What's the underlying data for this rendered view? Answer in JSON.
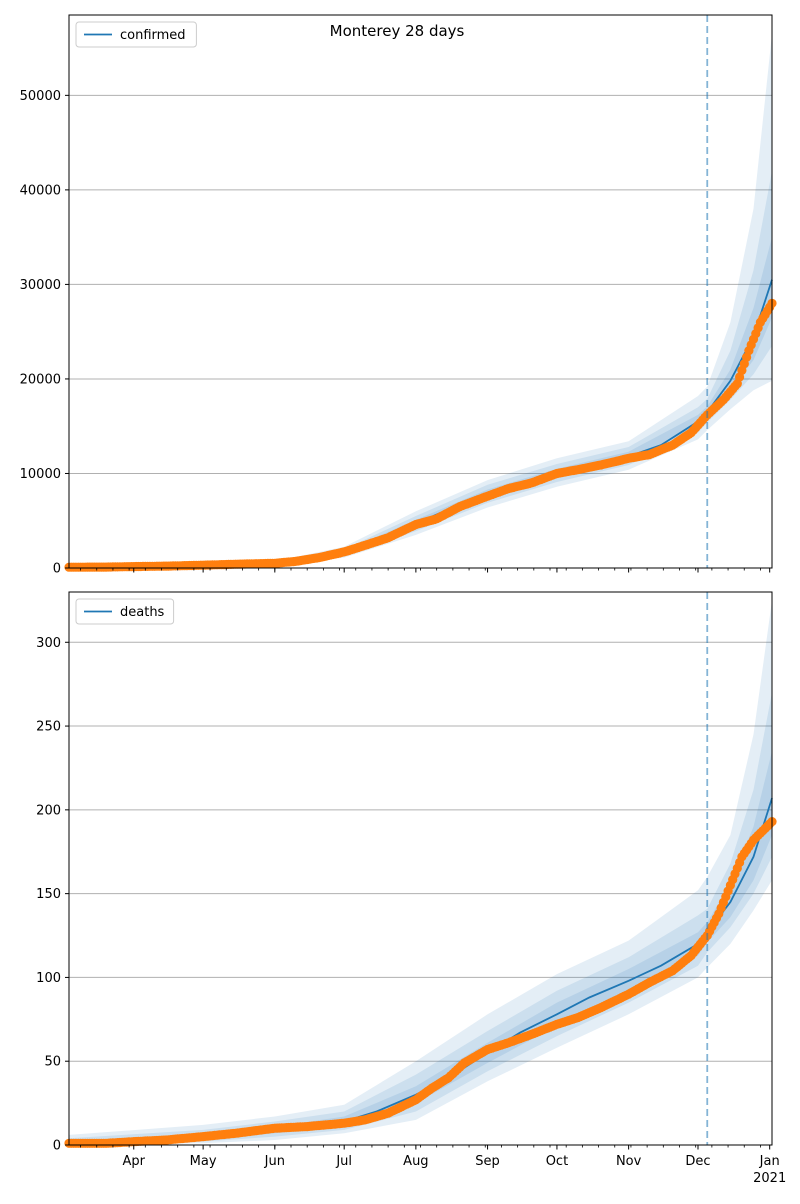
{
  "figure": {
    "title": "Monterey 28 days"
  },
  "colors": {
    "model": "#1f77b4",
    "observed": "#ff7f0e",
    "band": "#1f77b4",
    "grid": "#b0b0b0",
    "vline": "#1f77b4"
  },
  "xaxis": {
    "month_labels": [
      "Apr",
      "May",
      "Jun",
      "Jul",
      "Aug",
      "Sep",
      "Oct",
      "Nov",
      "Dec",
      "Jan"
    ],
    "year_label": "2021"
  },
  "chart_data": [
    {
      "type": "line",
      "title": "Monterey 28 days",
      "legend": {
        "entry": "confirmed",
        "placement": "top-left"
      },
      "xlim": [
        "2020-03-04",
        "2021-01-02"
      ],
      "ylim": [
        0,
        58500
      ],
      "yticks": [
        0,
        10000,
        20000,
        30000,
        40000,
        50000
      ],
      "grid": "horizontal",
      "forecast_start": "2020-12-05",
      "series": [
        {
          "name": "confirmed",
          "kind": "model",
          "x": [
            "2020-03-04",
            "2020-04-01",
            "2020-05-01",
            "2020-06-01",
            "2020-06-15",
            "2020-07-01",
            "2020-07-15",
            "2020-08-01",
            "2020-08-15",
            "2020-09-01",
            "2020-09-15",
            "2020-10-01",
            "2020-10-15",
            "2020-11-01",
            "2020-11-15",
            "2020-12-01",
            "2020-12-05",
            "2020-12-15",
            "2020-12-25",
            "2021-01-02"
          ],
          "values": [
            50,
            100,
            250,
            500,
            900,
            1600,
            2900,
            4700,
            6200,
            7800,
            9000,
            10000,
            10800,
            11800,
            13000,
            15500,
            16500,
            19800,
            24500,
            30500
          ]
        },
        {
          "name": "band 50%",
          "kind": "band",
          "x": [
            "2020-03-04",
            "2020-05-01",
            "2020-06-01",
            "2020-07-01",
            "2020-08-01",
            "2020-09-01",
            "2020-10-01",
            "2020-11-01",
            "2020-12-01",
            "2020-12-05",
            "2020-12-15",
            "2020-12-25",
            "2021-01-02"
          ],
          "lower": [
            40,
            200,
            420,
            1400,
            4300,
            7300,
            9500,
            11300,
            15000,
            16000,
            18800,
            22000,
            26500
          ],
          "upper": [
            60,
            300,
            580,
            1800,
            5100,
            8300,
            10500,
            12300,
            16200,
            17100,
            21000,
            27500,
            35000
          ]
        },
        {
          "name": "band 80%",
          "kind": "band",
          "x": [
            "2020-03-04",
            "2020-05-01",
            "2020-06-01",
            "2020-07-01",
            "2020-08-01",
            "2020-09-01",
            "2020-10-01",
            "2020-11-01",
            "2020-12-01",
            "2020-12-05",
            "2020-12-15",
            "2020-12-25",
            "2021-01-02"
          ],
          "lower": [
            30,
            170,
            360,
            1250,
            3900,
            6900,
            9100,
            10900,
            14300,
            15400,
            17800,
            20500,
            23500
          ],
          "upper": [
            70,
            340,
            650,
            2000,
            5500,
            8800,
            11000,
            12800,
            17000,
            17900,
            23000,
            31500,
            42000
          ]
        },
        {
          "name": "band 95%",
          "kind": "band",
          "x": [
            "2020-03-04",
            "2020-05-01",
            "2020-06-01",
            "2020-07-01",
            "2020-08-01",
            "2020-09-01",
            "2020-10-01",
            "2020-11-01",
            "2020-12-01",
            "2020-12-05",
            "2020-12-15",
            "2020-12-25",
            "2021-01-02"
          ],
          "lower": [
            20,
            130,
            300,
            1100,
            3500,
            6400,
            8600,
            10400,
            13600,
            14600,
            16800,
            18800,
            19800
          ],
          "upper": [
            80,
            380,
            720,
            2250,
            6000,
            9300,
            11600,
            13400,
            18200,
            19200,
            26000,
            38000,
            56500
          ]
        },
        {
          "name": "observed",
          "kind": "points",
          "x": [
            "2020-03-04",
            "2020-03-20",
            "2020-04-01",
            "2020-04-15",
            "2020-05-01",
            "2020-05-15",
            "2020-06-01",
            "2020-06-10",
            "2020-06-20",
            "2020-07-01",
            "2020-07-10",
            "2020-07-20",
            "2020-08-01",
            "2020-08-10",
            "2020-08-20",
            "2020-09-01",
            "2020-09-10",
            "2020-09-20",
            "2020-10-01",
            "2020-10-10",
            "2020-10-20",
            "2020-11-01",
            "2020-11-10",
            "2020-11-20",
            "2020-11-28",
            "2020-12-05",
            "2020-12-12",
            "2020-12-18",
            "2020-12-23",
            "2020-12-28",
            "2021-01-02"
          ],
          "values": [
            80,
            100,
            150,
            200,
            300,
            400,
            500,
            700,
            1100,
            1700,
            2400,
            3200,
            4600,
            5200,
            6500,
            7600,
            8400,
            9000,
            10000,
            10400,
            10900,
            11600,
            12000,
            13000,
            14300,
            16200,
            17800,
            19500,
            23000,
            26000,
            28000
          ]
        }
      ]
    },
    {
      "type": "line",
      "legend": {
        "entry": "deaths",
        "placement": "top-left"
      },
      "xlim": [
        "2020-03-04",
        "2021-01-02"
      ],
      "ylim": [
        0,
        330
      ],
      "yticks": [
        0,
        50,
        100,
        150,
        200,
        250,
        300
      ],
      "grid": "horizontal",
      "forecast_start": "2020-12-05",
      "series": [
        {
          "name": "deaths",
          "kind": "model",
          "x": [
            "2020-03-04",
            "2020-04-01",
            "2020-05-01",
            "2020-06-01",
            "2020-07-01",
            "2020-07-15",
            "2020-08-01",
            "2020-08-15",
            "2020-09-01",
            "2020-09-15",
            "2020-10-01",
            "2020-10-15",
            "2020-11-01",
            "2020-11-15",
            "2020-12-01",
            "2020-12-05",
            "2020-12-15",
            "2020-12-25",
            "2021-01-02"
          ],
          "values": [
            0,
            2,
            5,
            9,
            14,
            20,
            30,
            40,
            55,
            67,
            78,
            88,
            98,
            107,
            120,
            127,
            145,
            172,
            207
          ]
        },
        {
          "name": "band 50%",
          "kind": "band",
          "x": [
            "2020-03-04",
            "2020-05-01",
            "2020-06-01",
            "2020-07-01",
            "2020-08-01",
            "2020-09-01",
            "2020-10-01",
            "2020-11-01",
            "2020-12-01",
            "2020-12-05",
            "2020-12-15",
            "2020-12-25",
            "2021-01-02"
          ],
          "lower": [
            0,
            3,
            7,
            11,
            25,
            49,
            71,
            91,
            113,
            121,
            136,
            158,
            185
          ],
          "upper": [
            2,
            7,
            11,
            17,
            35,
            61,
            85,
            105,
            127,
            133,
            156,
            190,
            235
          ]
        },
        {
          "name": "band 80%",
          "kind": "band",
          "x": [
            "2020-03-04",
            "2020-05-01",
            "2020-06-01",
            "2020-07-01",
            "2020-08-01",
            "2020-09-01",
            "2020-10-01",
            "2020-11-01",
            "2020-12-01",
            "2020-12-05",
            "2020-12-15",
            "2020-12-25",
            "2021-01-02"
          ],
          "lower": [
            0,
            2,
            5,
            9,
            20,
            44,
            65,
            85,
            107,
            115,
            130,
            150,
            172
          ],
          "upper": [
            4,
            9,
            14,
            20,
            42,
            68,
            92,
            112,
            137,
            141,
            168,
            212,
            270
          ]
        },
        {
          "name": "band 95%",
          "kind": "band",
          "x": [
            "2020-03-04",
            "2020-05-01",
            "2020-06-01",
            "2020-07-01",
            "2020-08-01",
            "2020-09-01",
            "2020-10-01",
            "2020-11-01",
            "2020-12-01",
            "2020-12-05",
            "2020-12-15",
            "2020-12-25",
            "2021-01-02"
          ],
          "lower": [
            0,
            1,
            3,
            7,
            15,
            38,
            58,
            78,
            100,
            106,
            120,
            140,
            158
          ],
          "upper": [
            6,
            12,
            17,
            24,
            50,
            78,
            102,
            122,
            152,
            160,
            185,
            245,
            325
          ]
        },
        {
          "name": "observed",
          "kind": "points",
          "x": [
            "2020-03-04",
            "2020-03-20",
            "2020-04-01",
            "2020-04-15",
            "2020-05-01",
            "2020-05-15",
            "2020-06-01",
            "2020-06-15",
            "2020-07-01",
            "2020-07-10",
            "2020-07-20",
            "2020-08-01",
            "2020-08-08",
            "2020-08-15",
            "2020-08-22",
            "2020-09-01",
            "2020-09-10",
            "2020-09-20",
            "2020-10-01",
            "2020-10-10",
            "2020-10-20",
            "2020-11-01",
            "2020-11-10",
            "2020-11-20",
            "2020-11-28",
            "2020-12-05",
            "2020-12-10",
            "2020-12-15",
            "2020-12-20",
            "2020-12-25",
            "2021-01-02"
          ],
          "values": [
            1,
            1,
            2,
            3,
            5,
            7,
            10,
            11,
            13,
            15,
            19,
            27,
            34,
            40,
            49,
            57,
            61,
            66,
            72,
            76,
            82,
            90,
            97,
            104,
            113,
            125,
            138,
            155,
            172,
            182,
            193
          ]
        }
      ]
    }
  ]
}
